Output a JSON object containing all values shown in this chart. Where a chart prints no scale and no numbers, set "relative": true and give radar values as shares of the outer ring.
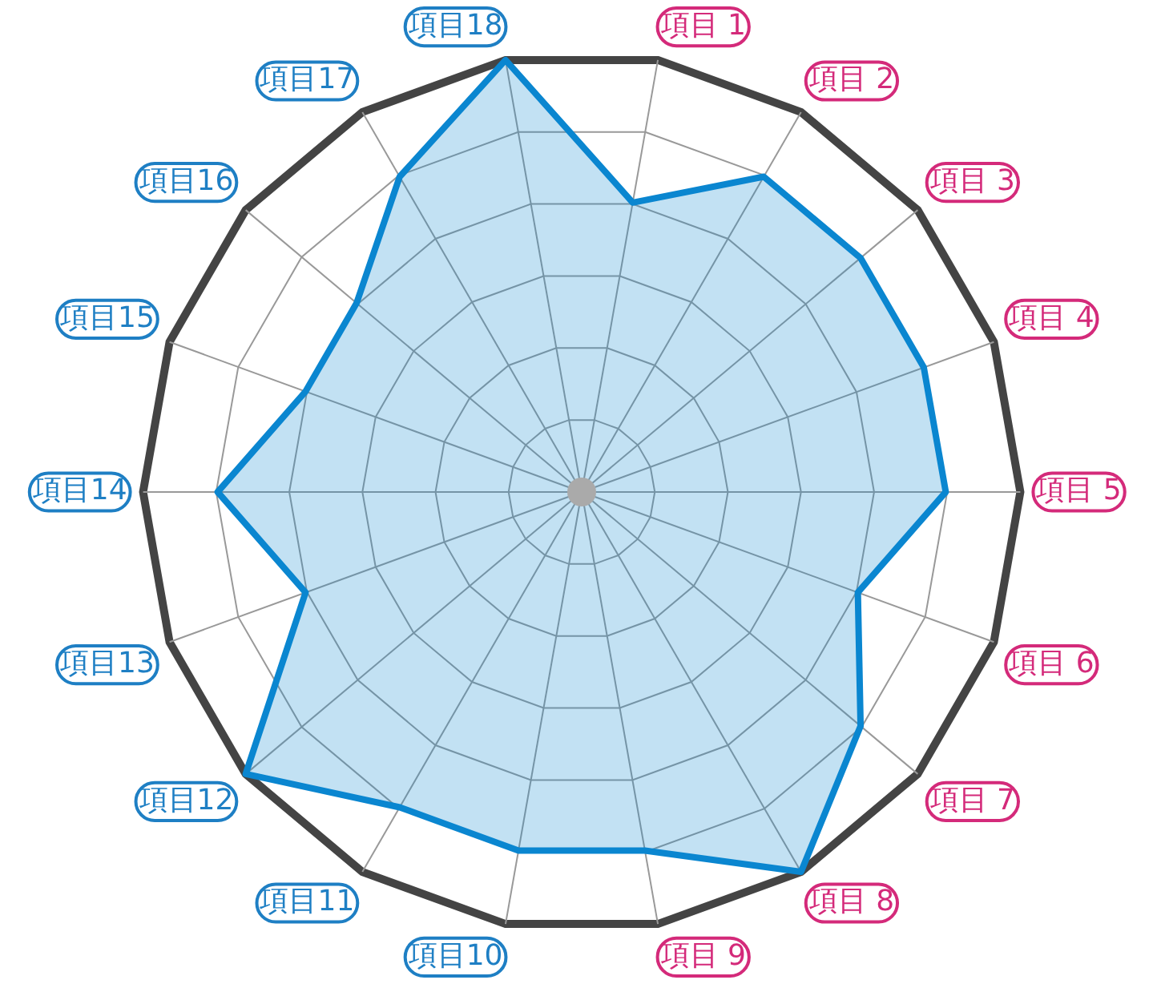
{
  "chart_data": {
    "type": "radar",
    "relative": true,
    "grid": true,
    "legend": false,
    "marker": "none",
    "categories": [
      "項目 1",
      "項目 2",
      "項目 3",
      "項目 4",
      "項目 5",
      "項目 6",
      "項目 7",
      "項目 8",
      "項目 9",
      "項目10",
      "項目11",
      "項目12",
      "項目13",
      "項目14",
      "項目15",
      "項目16",
      "項目17",
      "項目18"
    ],
    "series": [
      {
        "color": "#0a86d0",
        "values": [
          0.67,
          0.83,
          0.83,
          0.83,
          0.83,
          0.67,
          0.83,
          1,
          0.83,
          0.83,
          0.83,
          1,
          0.67,
          0.83,
          0.67,
          0.67,
          0.83,
          1
        ]
      }
    ]
  }
}
